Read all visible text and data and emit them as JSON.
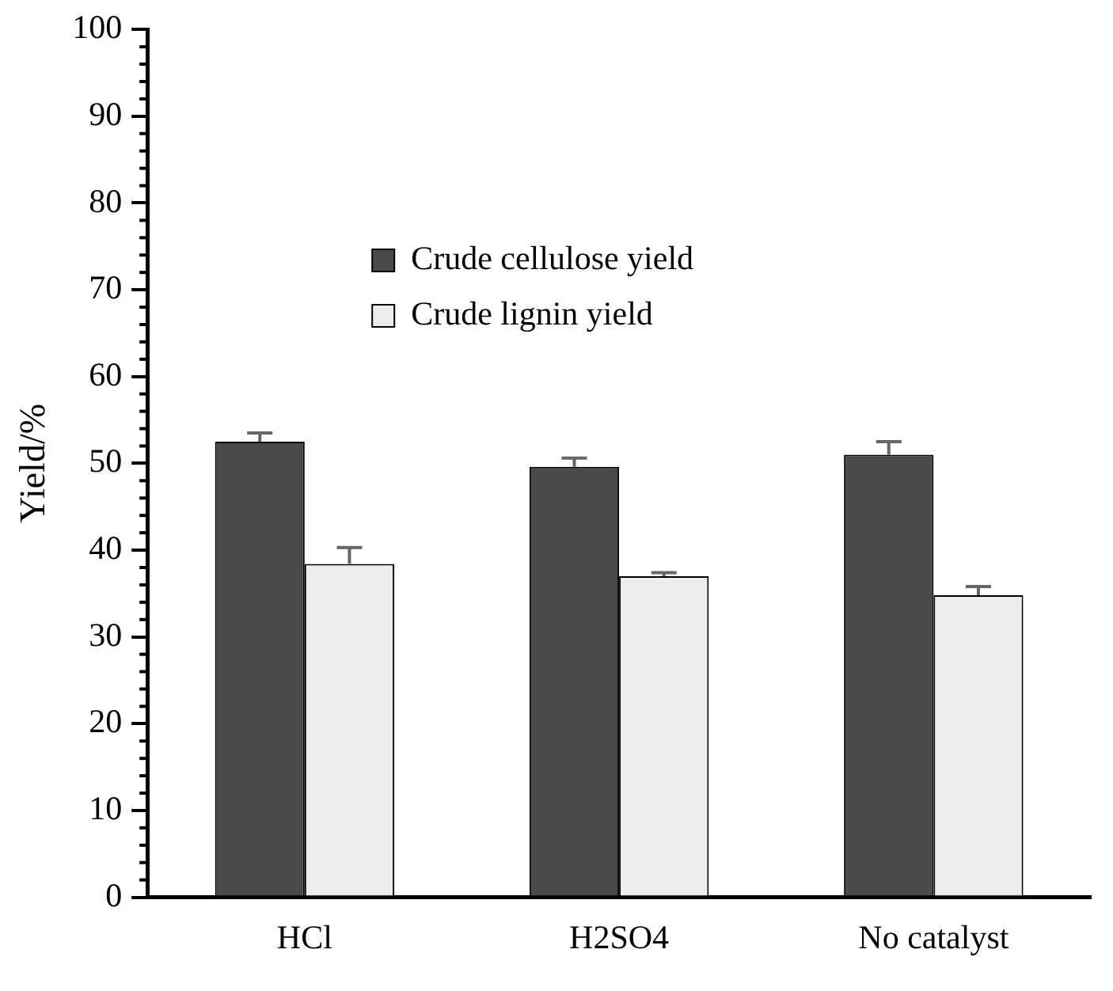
{
  "chart_data": {
    "type": "bar",
    "ylabel": "Yield/%",
    "categories": [
      "HCl",
      "H2SO4",
      "No catalyst"
    ],
    "series": [
      {
        "name": "Crude cellulose yield",
        "color": "#4a4a4a",
        "values": [
          52.5,
          49.6,
          51.0
        ],
        "errors": [
          [
            52.5,
            53.5
          ],
          [
            49.6,
            50.6
          ],
          [
            51.0,
            52.5
          ]
        ]
      },
      {
        "name": "Crude lignin yield",
        "color": "#ececec",
        "values": [
          38.4,
          37.0,
          34.8
        ],
        "errors": [
          [
            38.4,
            40.3
          ],
          [
            37.0,
            37.4
          ],
          [
            34.8,
            35.8
          ]
        ]
      }
    ],
    "ylim": [
      0,
      100
    ],
    "yticks": [
      0,
      10,
      20,
      30,
      40,
      50,
      60,
      70,
      80,
      90,
      100
    ],
    "grid": false,
    "legend": "top left"
  }
}
